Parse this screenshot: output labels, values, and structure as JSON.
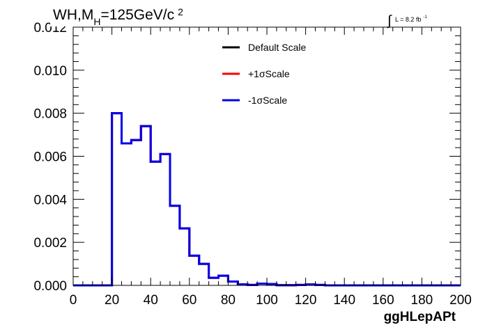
{
  "chart_data": {
    "type": "line",
    "title": "WH,M_{H}=125GeV/c^{2}",
    "title_parts": {
      "main": "WH,M",
      "sub": "H",
      "tail": "=125GeV/c",
      "sup": "2"
    },
    "luminosity": {
      "symbol": "∫",
      "text": "L = 8.2 fb",
      "sup": "-1"
    },
    "xlabel": "ggHLepAPt",
    "ylabel": "",
    "xlim": [
      0,
      200
    ],
    "ylim": [
      0,
      0.012
    ],
    "x_ticks": [
      0,
      20,
      40,
      60,
      80,
      100,
      120,
      140,
      160,
      180,
      200
    ],
    "x_tick_labels": [
      "0",
      "20",
      "40",
      "60",
      "80",
      "100",
      "120",
      "140",
      "160",
      "180",
      "200"
    ],
    "y_ticks": [
      0,
      0.002,
      0.004,
      0.006,
      0.008,
      0.01,
      0.012
    ],
    "y_tick_labels": [
      "0.000",
      "0.002",
      "0.004",
      "0.006",
      "0.008",
      "0.010",
      "0.012"
    ],
    "grid": false,
    "legend_position": "top-center",
    "bin_width": 5,
    "bin_edges_start": 0,
    "series": [
      {
        "name": "Default Scale",
        "color": "#000000",
        "values": [
          0,
          0,
          0,
          0,
          0.008,
          0.0066,
          0.00675,
          0.0074,
          0.00575,
          0.0061,
          0.0037,
          0.00265,
          0.00138,
          0.001,
          0.00035,
          0.00045,
          0.00018,
          5e-05,
          2e-05,
          8e-05,
          6e-05,
          1e-05,
          1e-05,
          2e-05,
          4e-05,
          2e-05,
          0,
          0,
          0,
          0,
          0,
          0,
          0,
          0,
          0,
          0,
          0,
          0,
          0,
          0
        ]
      },
      {
        "name": "+1σScale",
        "color": "#ff0000",
        "values": [
          0,
          0,
          0,
          0,
          0.008,
          0.0066,
          0.00675,
          0.0074,
          0.00575,
          0.0061,
          0.0037,
          0.00265,
          0.00138,
          0.001,
          0.00035,
          0.00045,
          0.00018,
          5e-05,
          2e-05,
          8e-05,
          6e-05,
          1e-05,
          1e-05,
          2e-05,
          4e-05,
          2e-05,
          0,
          0,
          0,
          0,
          0,
          0,
          0,
          0,
          0,
          0,
          0,
          0,
          0,
          0
        ]
      },
      {
        "name": "-1σScale",
        "color": "#0000ee",
        "values": [
          0,
          0,
          0,
          0,
          0.008,
          0.0066,
          0.00675,
          0.0074,
          0.00575,
          0.0061,
          0.0037,
          0.00265,
          0.00138,
          0.001,
          0.00035,
          0.00045,
          0.00018,
          5e-05,
          2e-05,
          8e-05,
          6e-05,
          1e-05,
          1e-05,
          2e-05,
          4e-05,
          2e-05,
          0,
          0,
          0,
          0,
          0,
          0,
          0,
          0,
          0,
          0,
          0,
          0,
          0,
          0
        ]
      }
    ]
  }
}
